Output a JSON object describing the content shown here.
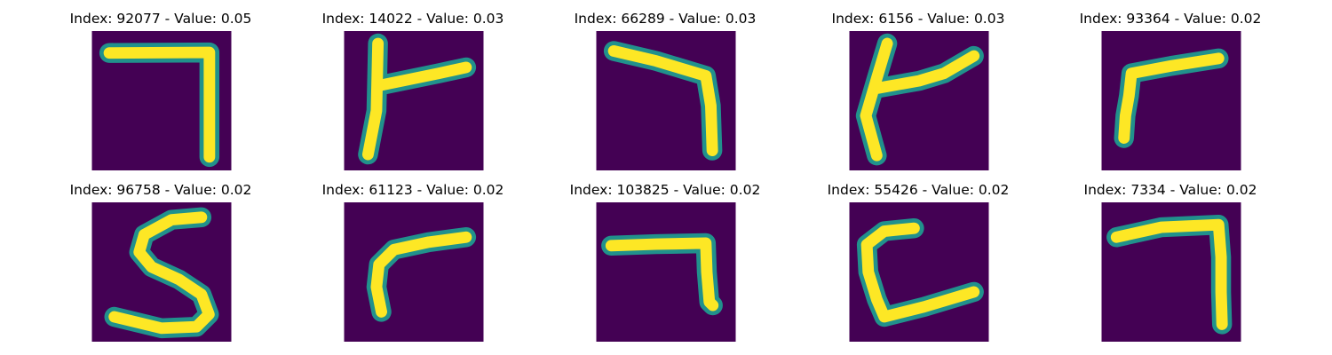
{
  "colors": {
    "background": "#440154",
    "stroke_mid": "#21918c",
    "stroke_core": "#fde725"
  },
  "panels": [
    {
      "title": "Index: 92077 - Value: 0.05"
    },
    {
      "title": "Index: 14022 - Value: 0.03"
    },
    {
      "title": "Index: 66289 - Value: 0.03"
    },
    {
      "title": "Index: 6156 - Value: 0.03"
    },
    {
      "title": "Index: 93364 - Value: 0.02"
    },
    {
      "title": "Index: 96758 - Value: 0.02"
    },
    {
      "title": "Index: 61123 - Value: 0.02"
    },
    {
      "title": "Index: 103825 - Value: 0.02"
    },
    {
      "title": "Index: 55426 - Value: 0.02"
    },
    {
      "title": "Index: 7334 - Value: 0.02"
    }
  ]
}
